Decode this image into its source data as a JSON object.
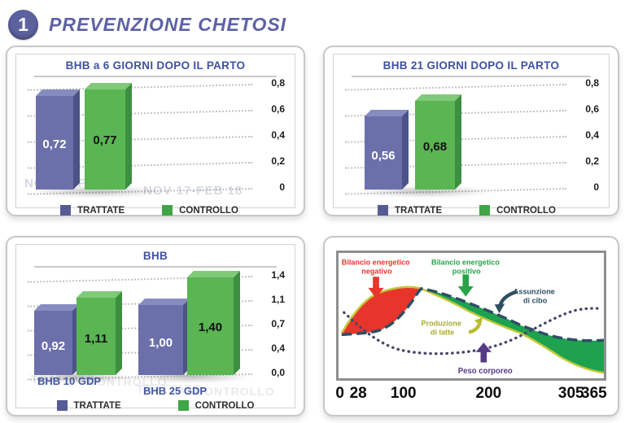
{
  "page": {
    "badge": "1",
    "title": "PREVENZIONE CHETOSI"
  },
  "colors": {
    "treated_bar": "#6b70ab",
    "control_bar": "#5ab553",
    "title_blue": "#3f51a3",
    "badge_purple": "#5c619f",
    "negative_red": "#e8352b",
    "positive_green": "#1ea24f",
    "feed_navy": "#2d4f63",
    "milk_olive": "#b8bd33",
    "weight_purple": "#5a3a8a"
  },
  "chart_data": [
    {
      "id": "bhb6",
      "type": "bar",
      "title": "BHB a 6 GIORNI DOPO IL PARTO",
      "categories": [
        "NOV16- FEB 17",
        "NOV 17-FEB 18"
      ],
      "series": [
        {
          "name": "TRATTATE",
          "values": [
            0.72
          ]
        },
        {
          "name": "CONTROLLO",
          "values": [
            0.77
          ]
        }
      ],
      "bars": [
        {
          "series": "TRATTATE",
          "value": 0.72,
          "label": "0,72"
        },
        {
          "series": "CONTROLLO",
          "value": 0.77,
          "label": "0,77"
        }
      ],
      "yticks": [
        "0,8",
        "0,6",
        "0,4",
        "0,2",
        "0"
      ],
      "ymax": 0.8,
      "legend": [
        "TRATTATE",
        "CONTROLLO"
      ]
    },
    {
      "id": "bhb21",
      "type": "bar",
      "title": "BHB 21 GIORNI DOPO IL PARTO",
      "series": [
        {
          "name": "TRATTATE",
          "values": [
            0.56
          ]
        },
        {
          "name": "CONTROLLO",
          "values": [
            0.68
          ]
        }
      ],
      "bars": [
        {
          "series": "TRATTATE",
          "value": 0.56,
          "label": "0,56"
        },
        {
          "series": "CONTROLLO",
          "value": 0.68,
          "label": "0,68"
        }
      ],
      "yticks": [
        "0,8",
        "0,6",
        "0,4",
        "0,2",
        "0"
      ],
      "ymax": 0.8,
      "legend": [
        "TRATTATE",
        "CONTROLLO"
      ]
    },
    {
      "id": "bhb_gdp",
      "type": "bar",
      "title": "BHB",
      "categories": [
        "BHB 10 GDP",
        "BHB 25 GDP"
      ],
      "series": [
        {
          "name": "TRATTATE",
          "values": [
            0.92,
            1.0
          ]
        },
        {
          "name": "CONTROLLO",
          "values": [
            1.11,
            1.4
          ]
        }
      ],
      "bars": [
        {
          "series": "TRATTATE",
          "value": 0.92,
          "label": "0,92",
          "group": 0
        },
        {
          "series": "CONTROLLO",
          "value": 1.11,
          "label": "1,11",
          "group": 0
        },
        {
          "series": "TRATTATE",
          "value": 1.0,
          "label": "1,00",
          "group": 1
        },
        {
          "series": "CONTROLLO",
          "value": 1.4,
          "label": "1,40",
          "group": 1
        }
      ],
      "watermark": [
        "TRATTATE",
        "CONTROLLO"
      ],
      "yticks": [
        "1,4",
        "1,1",
        "0,7",
        "0,4",
        "0,0"
      ],
      "ymax": 1.4,
      "legend": [
        "TRATTATE",
        "CONTROLLO"
      ]
    },
    {
      "id": "lactation_curve",
      "type": "area",
      "xticks": [
        {
          "label": "0",
          "pos": 0
        },
        {
          "label": "28",
          "pos": 8
        },
        {
          "label": "100",
          "pos": 25
        },
        {
          "label": "200",
          "pos": 57
        },
        {
          "label": "305",
          "pos": 88
        },
        {
          "label": "365",
          "pos": 100
        }
      ],
      "labels": {
        "neg_l1": "Bilancio energetico",
        "neg_l2": "negativo",
        "pos_l1": "Bilancio energetico",
        "pos_l2": "positivo",
        "feed_l1": "Assunzione",
        "feed_l2": "di cibo",
        "milk_l1": "Produzione",
        "milk_l2": "di latte",
        "weight": "Peso corporeo"
      },
      "curves": [
        {
          "name": "Produzione di latte",
          "x_days": [
            0,
            20,
            50,
            80,
            102,
            150,
            200,
            250,
            305,
            340,
            365
          ],
          "level": [
            36,
            52,
            67,
            73,
            72,
            55,
            40,
            27,
            17,
            8,
            4
          ]
        },
        {
          "name": "Assunzione di cibo",
          "x_days": [
            0,
            30,
            60,
            90,
            114,
            150,
            200,
            250,
            305,
            365
          ],
          "level": [
            35,
            36,
            41,
            55,
            72,
            61,
            48,
            38,
            32,
            30
          ]
        },
        {
          "name": "Peso corporeo",
          "x_days": [
            8,
            50,
            110,
            160,
            215,
            260,
            290,
            330,
            365
          ],
          "level": [
            53,
            28,
            20,
            21,
            26,
            37,
            46,
            54,
            55
          ]
        }
      ],
      "regions": [
        {
          "name": "Bilancio energetico negativo",
          "between": [
            "Produzione di latte",
            "Assunzione di cibo"
          ],
          "x_days": [
            0,
            114
          ]
        },
        {
          "name": "Bilancio energetico positivo",
          "between": [
            "Assunzione di cibo",
            "Produzione di latte"
          ],
          "x_days": [
            114,
            365
          ]
        }
      ]
    }
  ]
}
